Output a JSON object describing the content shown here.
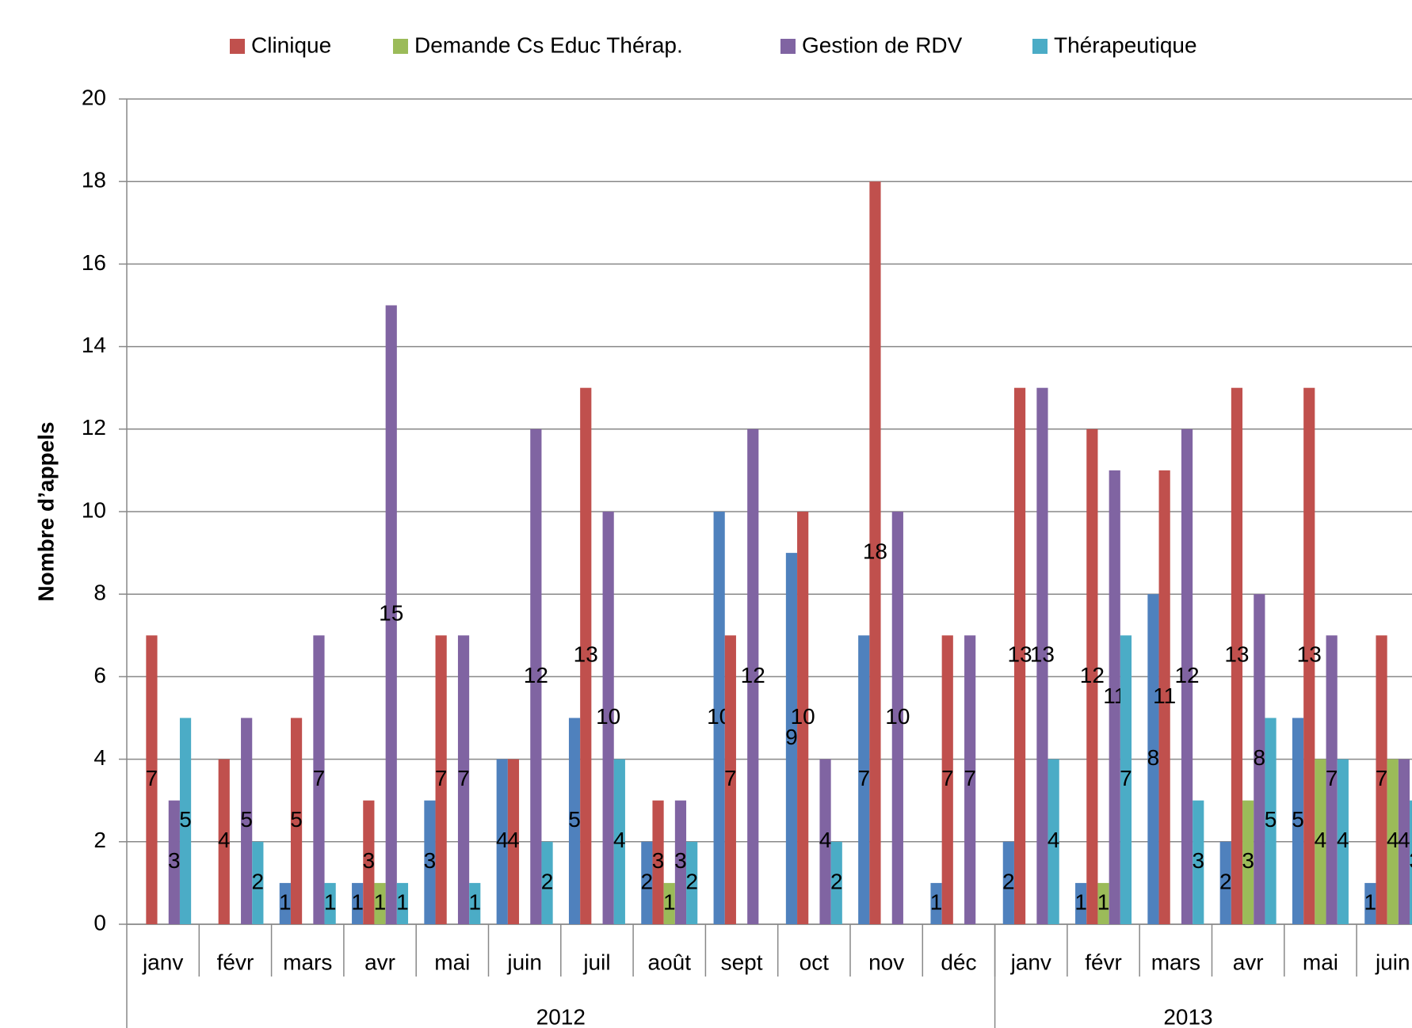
{
  "chart_data": {
    "type": "bar",
    "y_label": "Nombre d’appels",
    "categories": [
      "janv",
      "févr",
      "mars",
      "avr",
      "mai",
      "juin",
      "juil",
      "août",
      "sept",
      "oct",
      "nov",
      "déc",
      "janv",
      "févr",
      "mars",
      "avr",
      "mai",
      "juin"
    ],
    "x_groups": [
      {
        "label": "2012",
        "start": 0,
        "end": 11
      },
      {
        "label": "2013",
        "start": 12,
        "end": 17
      }
    ],
    "series": [
      {
        "color": "#4f81bd",
        "values": [
          null,
          null,
          1,
          1,
          3,
          4,
          5,
          2,
          10,
          9,
          7,
          1,
          2,
          1,
          8,
          2,
          5,
          1
        ]
      },
      {
        "name": "Clinique",
        "color": "#c0504d",
        "values": [
          7,
          4,
          5,
          3,
          7,
          4,
          13,
          3,
          7,
          10,
          18,
          7,
          13,
          12,
          11,
          13,
          13,
          7
        ]
      },
      {
        "name": "Demande Cs Educ Thérap.",
        "color": "#9bbb59",
        "values": [
          null,
          null,
          null,
          1,
          null,
          null,
          null,
          1,
          null,
          null,
          null,
          null,
          null,
          1,
          null,
          3,
          4,
          4
        ]
      },
      {
        "name": "Gestion de RDV",
        "color": "#8064a2",
        "values": [
          3,
          5,
          7,
          15,
          7,
          12,
          10,
          3,
          12,
          4,
          10,
          7,
          13,
          11,
          12,
          8,
          7,
          4
        ]
      },
      {
        "name": "Thérapeutique",
        "color": "#4bacc6",
        "values": [
          5,
          2,
          1,
          1,
          1,
          2,
          4,
          2,
          null,
          2,
          null,
          null,
          4,
          7,
          3,
          5,
          4,
          3
        ]
      }
    ],
    "ylim": [
      0,
      20
    ],
    "yticks": [
      0,
      2,
      4,
      6,
      8,
      10,
      12,
      14,
      16,
      18,
      20
    ],
    "grid": true,
    "legend": "top"
  }
}
